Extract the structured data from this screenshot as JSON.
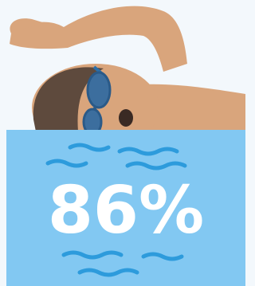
{
  "statistic": "86%"
}
